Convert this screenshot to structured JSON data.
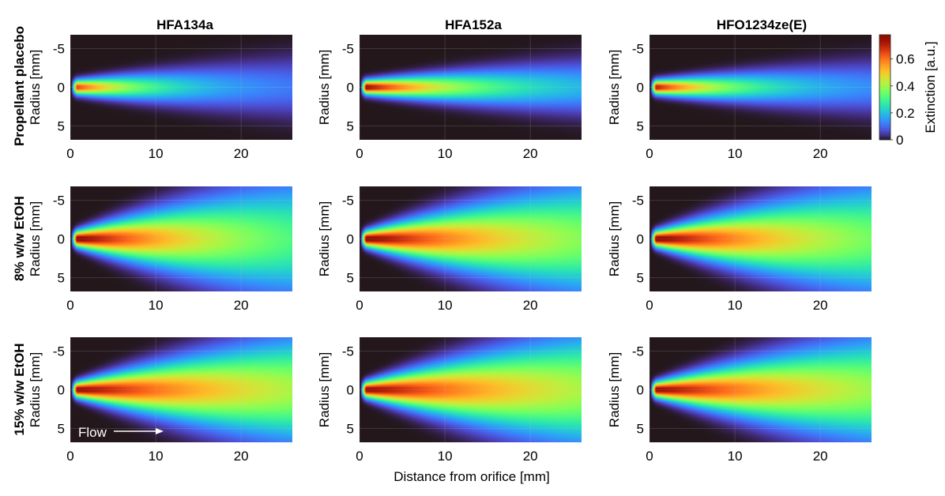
{
  "chart_data": {
    "type": "heatmap",
    "columns": [
      "HFA134a",
      "HFA152a",
      "HFO1234ze(E)"
    ],
    "rows": [
      "Propellant placebo",
      "8% w/w EtOH",
      "15% w/w EtOH"
    ],
    "xlabel": "Distance from orifice [mm]",
    "ylabel": "Radius [mm]",
    "xlim": [
      0,
      26
    ],
    "ylim": [
      -6.8,
      6.8
    ],
    "y_reversed": true,
    "x_ticks": [
      0,
      10,
      20
    ],
    "y_ticks": [
      -5,
      0,
      5
    ],
    "y_tick_labels": [
      "-5",
      "0",
      "5"
    ],
    "x_tick_labels": [
      "0",
      "10",
      "20"
    ],
    "colorbar": {
      "label": "Extinction [a.u.]",
      "range": [
        0,
        0.78
      ],
      "ticks": [
        0,
        0.2,
        0.4,
        0.6
      ],
      "tick_labels": [
        "0",
        "0.2",
        "0.4",
        "0.6"
      ],
      "colormap": "turbo"
    },
    "annotation": {
      "text": "Flow",
      "panel": [
        2,
        0
      ]
    },
    "background_color": "#30123b",
    "panels": [
      {
        "row": 0,
        "col": 0,
        "peak_extinction": 0.66,
        "spread_slope": 0.07,
        "decay_length": 9
      },
      {
        "row": 0,
        "col": 1,
        "peak_extinction": 0.76,
        "spread_slope": 0.06,
        "decay_length": 13
      },
      {
        "row": 0,
        "col": 2,
        "peak_extinction": 0.72,
        "spread_slope": 0.06,
        "decay_length": 10
      },
      {
        "row": 1,
        "col": 0,
        "peak_extinction": 0.78,
        "spread_slope": 0.17,
        "decay_length": 22
      },
      {
        "row": 1,
        "col": 1,
        "peak_extinction": 0.78,
        "spread_slope": 0.16,
        "decay_length": 28
      },
      {
        "row": 1,
        "col": 2,
        "peak_extinction": 0.78,
        "spread_slope": 0.16,
        "decay_length": 26
      },
      {
        "row": 2,
        "col": 0,
        "peak_extinction": 0.76,
        "spread_slope": 0.15,
        "decay_length": 34
      },
      {
        "row": 2,
        "col": 1,
        "peak_extinction": 0.76,
        "spread_slope": 0.16,
        "decay_length": 34
      },
      {
        "row": 2,
        "col": 2,
        "peak_extinction": 0.76,
        "spread_slope": 0.15,
        "decay_length": 32
      }
    ]
  }
}
